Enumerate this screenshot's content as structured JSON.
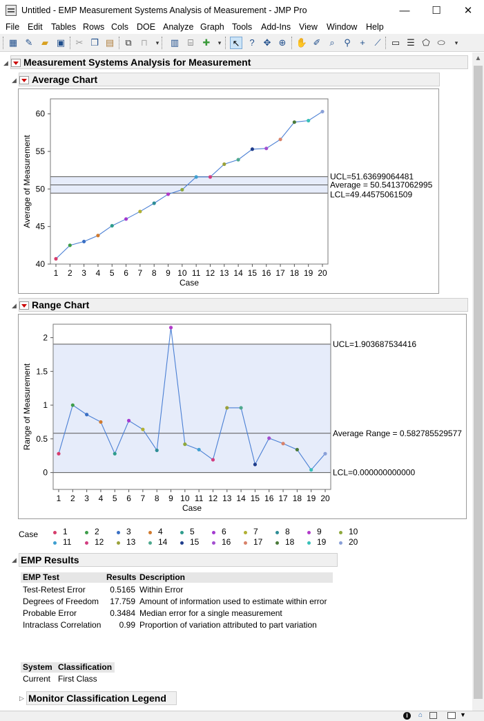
{
  "window": {
    "title": "Untitled - EMP Measurement Systems Analysis of Measurement - JMP Pro",
    "minimize": "—",
    "maximize": "☐",
    "close": "✕"
  },
  "menu": [
    "File",
    "Edit",
    "Tables",
    "Rows",
    "Cols",
    "DOE",
    "Analyze",
    "Graph",
    "Tools",
    "Add-Ins",
    "View",
    "Window",
    "Help"
  ],
  "toolbar": {
    "icons": [
      "new-table-icon",
      "new-script-icon",
      "open-icon",
      "save-icon",
      "cut-icon",
      "copy-icon",
      "paste-icon",
      "script-icon",
      "lock-icon",
      "data-table-icon",
      "journal-icon",
      "add-icon",
      "arrow-tool-icon",
      "help-tool-icon",
      "crosshair-tool-icon",
      "selection-tool-icon",
      "hand-tool-icon",
      "brush-tool-icon",
      "lasso-tool-icon",
      "magnifier-tool-icon",
      "crosshair-plus-icon",
      "line-tool-icon",
      "annotate-tool-icon",
      "simple-shape-icon",
      "polygon-tool-icon",
      "ellipse-tool-icon"
    ]
  },
  "report": {
    "title": "Measurement Systems Analysis for Measurement",
    "average_chart_title": "Average Chart",
    "range_chart_title": "Range Chart",
    "emp_results_title": "EMP Results",
    "monitor_legend_title": "Monitor Classification Legend"
  },
  "chart_data": [
    {
      "type": "line",
      "title": "",
      "xlabel": "Case",
      "ylabel": "Average of Measurement",
      "categories": [
        "1",
        "2",
        "3",
        "4",
        "5",
        "6",
        "7",
        "8",
        "9",
        "10",
        "11",
        "12",
        "13",
        "14",
        "15",
        "16",
        "17",
        "18",
        "19",
        "20"
      ],
      "values": [
        40.7,
        42.5,
        43.0,
        43.8,
        45.1,
        46.0,
        47.0,
        48.1,
        49.3,
        49.9,
        51.6,
        51.6,
        53.3,
        53.9,
        55.3,
        55.4,
        56.6,
        58.9,
        59.1,
        60.3
      ],
      "ylim": [
        40,
        62
      ],
      "yticks": [
        "40",
        "45",
        "50",
        "55",
        "60"
      ],
      "limits": {
        "ucl": 51.63699064481,
        "center": 50.54137062995,
        "lcl": 49.44575061509,
        "ucl_label": "UCL=51.63699064481",
        "center_label": "Average = 50.54137062995",
        "lcl_label": "LCL=49.44575061509"
      }
    },
    {
      "type": "line",
      "title": "",
      "xlabel": "Case",
      "ylabel": "Range of Measurement",
      "categories": [
        "1",
        "2",
        "3",
        "4",
        "5",
        "6",
        "7",
        "8",
        "9",
        "10",
        "11",
        "12",
        "13",
        "14",
        "15",
        "16",
        "17",
        "18",
        "19",
        "20"
      ],
      "values": [
        0.28,
        1.0,
        0.86,
        0.75,
        0.28,
        0.77,
        0.64,
        0.33,
        2.15,
        0.42,
        0.34,
        0.19,
        0.96,
        0.96,
        0.12,
        0.51,
        0.43,
        0.34,
        0.04,
        0.28
      ],
      "ylim": [
        -0.25,
        2.2
      ],
      "yticks": [
        "0",
        "0.5",
        "1",
        "1.5",
        "2"
      ],
      "limits": {
        "ucl": 1.903687534416,
        "center": 0.582785529577,
        "lcl": 0.0,
        "ucl_label": "UCL=1.903687534416",
        "center_label": "Average Range = 0.582785529577",
        "lcl_label": "LCL=0.000000000000"
      }
    }
  ],
  "case_colors": [
    "#d63d6c",
    "#3e9d4a",
    "#3a6fc4",
    "#d17a2e",
    "#2e9c8c",
    "#a33ad0",
    "#b1b033",
    "#2e8d96",
    "#b23ac9",
    "#8ea83c",
    "#3f9fd0",
    "#d23d80",
    "#9aa13a",
    "#4fa98f",
    "#1f3d8c",
    "#a34fd0",
    "#d8826a",
    "#4a7a3a",
    "#39c0b8",
    "#8aa0d8"
  ],
  "case_legend": {
    "label": "Case",
    "items": [
      "1",
      "2",
      "3",
      "4",
      "5",
      "6",
      "7",
      "8",
      "9",
      "10",
      "11",
      "12",
      "13",
      "14",
      "15",
      "16",
      "17",
      "18",
      "19",
      "20"
    ]
  },
  "emp_results": {
    "headers": [
      "EMP Test",
      "Results",
      "Description"
    ],
    "rows": [
      {
        "test": "Test-Retest Error",
        "result": "0.5165",
        "desc": "Within Error"
      },
      {
        "test": "Degrees of Freedom",
        "result": "17.759",
        "desc": "Amount of information used to estimate within error"
      },
      {
        "test": "Probable Error",
        "result": "0.3484",
        "desc": "Median error for a single measurement"
      },
      {
        "test": "Intraclass Correlation",
        "result": "0.99",
        "desc": "Proportion of variation attributed to part variation"
      }
    ]
  },
  "classification": {
    "headers": [
      "System",
      "Classification"
    ],
    "system": "Current",
    "value": "First Class"
  },
  "statusbar": {
    "info_icon": "info-icon"
  }
}
